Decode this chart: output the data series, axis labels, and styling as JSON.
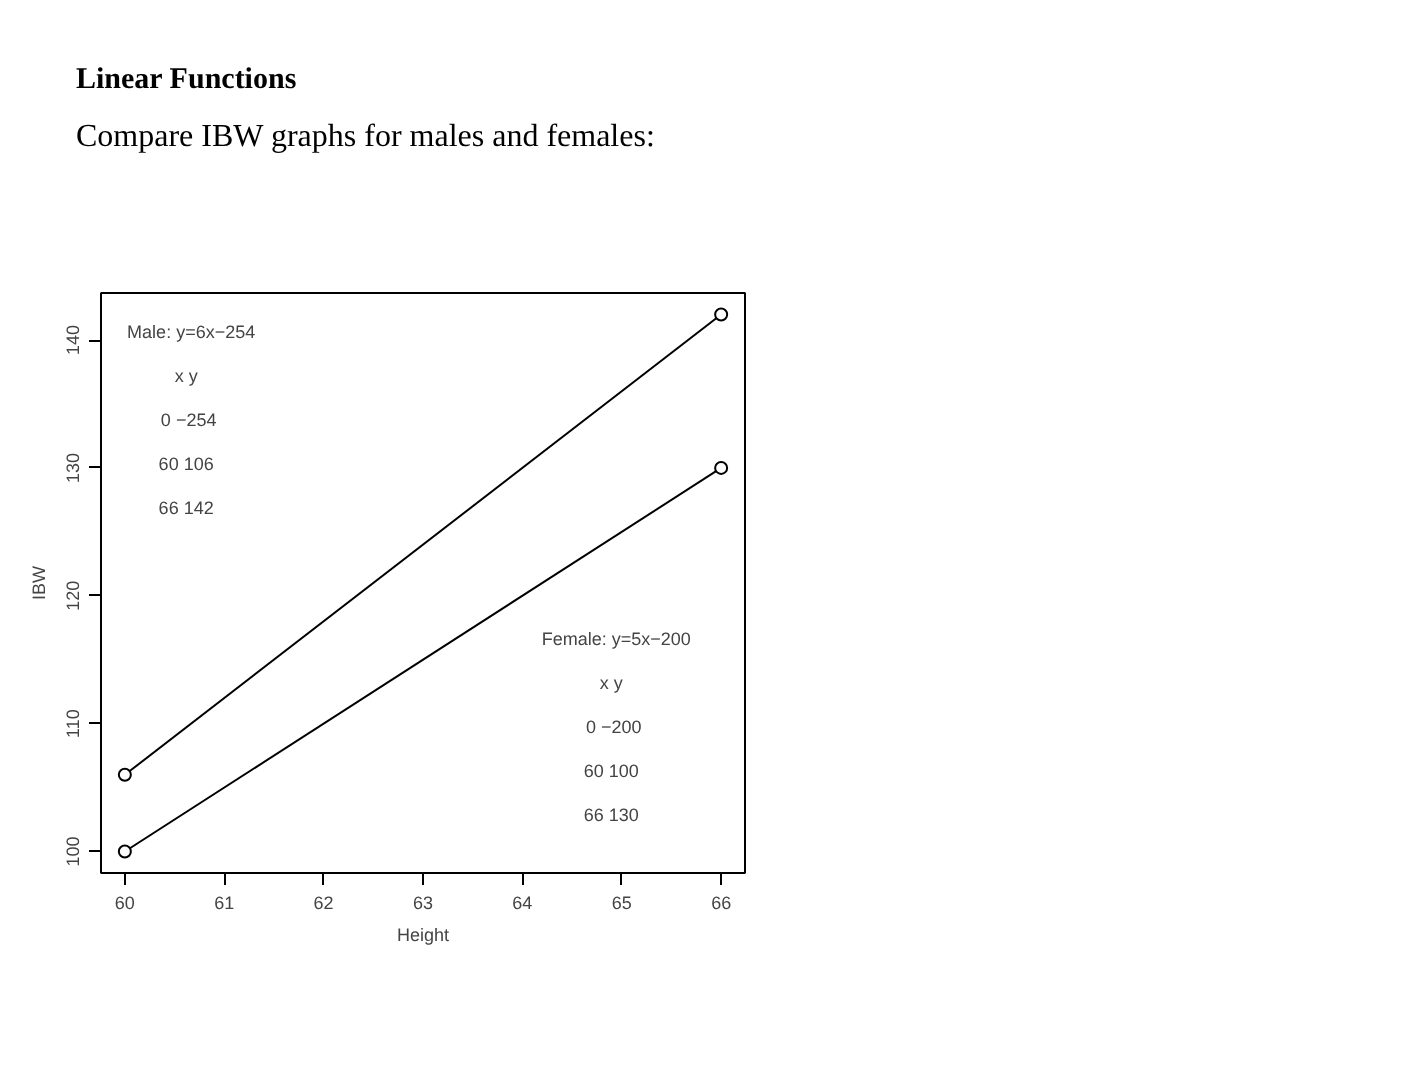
{
  "chart_data": {
    "type": "line",
    "title": "Linear Functions",
    "subtitle": "Compare IBW graphs for males and females:",
    "xlabel": "Height",
    "ylabel": "IBW",
    "x": [
      60,
      66
    ],
    "series": [
      {
        "color": "#000000",
        "values": [
          106,
          142
        ]
      },
      {
        "color": "#000000",
        "values": [
          100,
          130
        ]
      }
    ],
    "xlim": [
      59.76,
      66.24
    ],
    "ylim": [
      98.32,
      143.68
    ],
    "xticks": [
      60,
      61,
      62,
      63,
      64,
      65,
      66
    ],
    "yticks": [
      100,
      110,
      120,
      130,
      140
    ],
    "marker": "circle",
    "line_style": "solid",
    "annotations": [
      "Male: y=6x−254\nx   y\n0  −254\n60   106\n66   142",
      "Female: y=5x−200\nx   y\n0  −200\n60   100\n66   130"
    ]
  }
}
